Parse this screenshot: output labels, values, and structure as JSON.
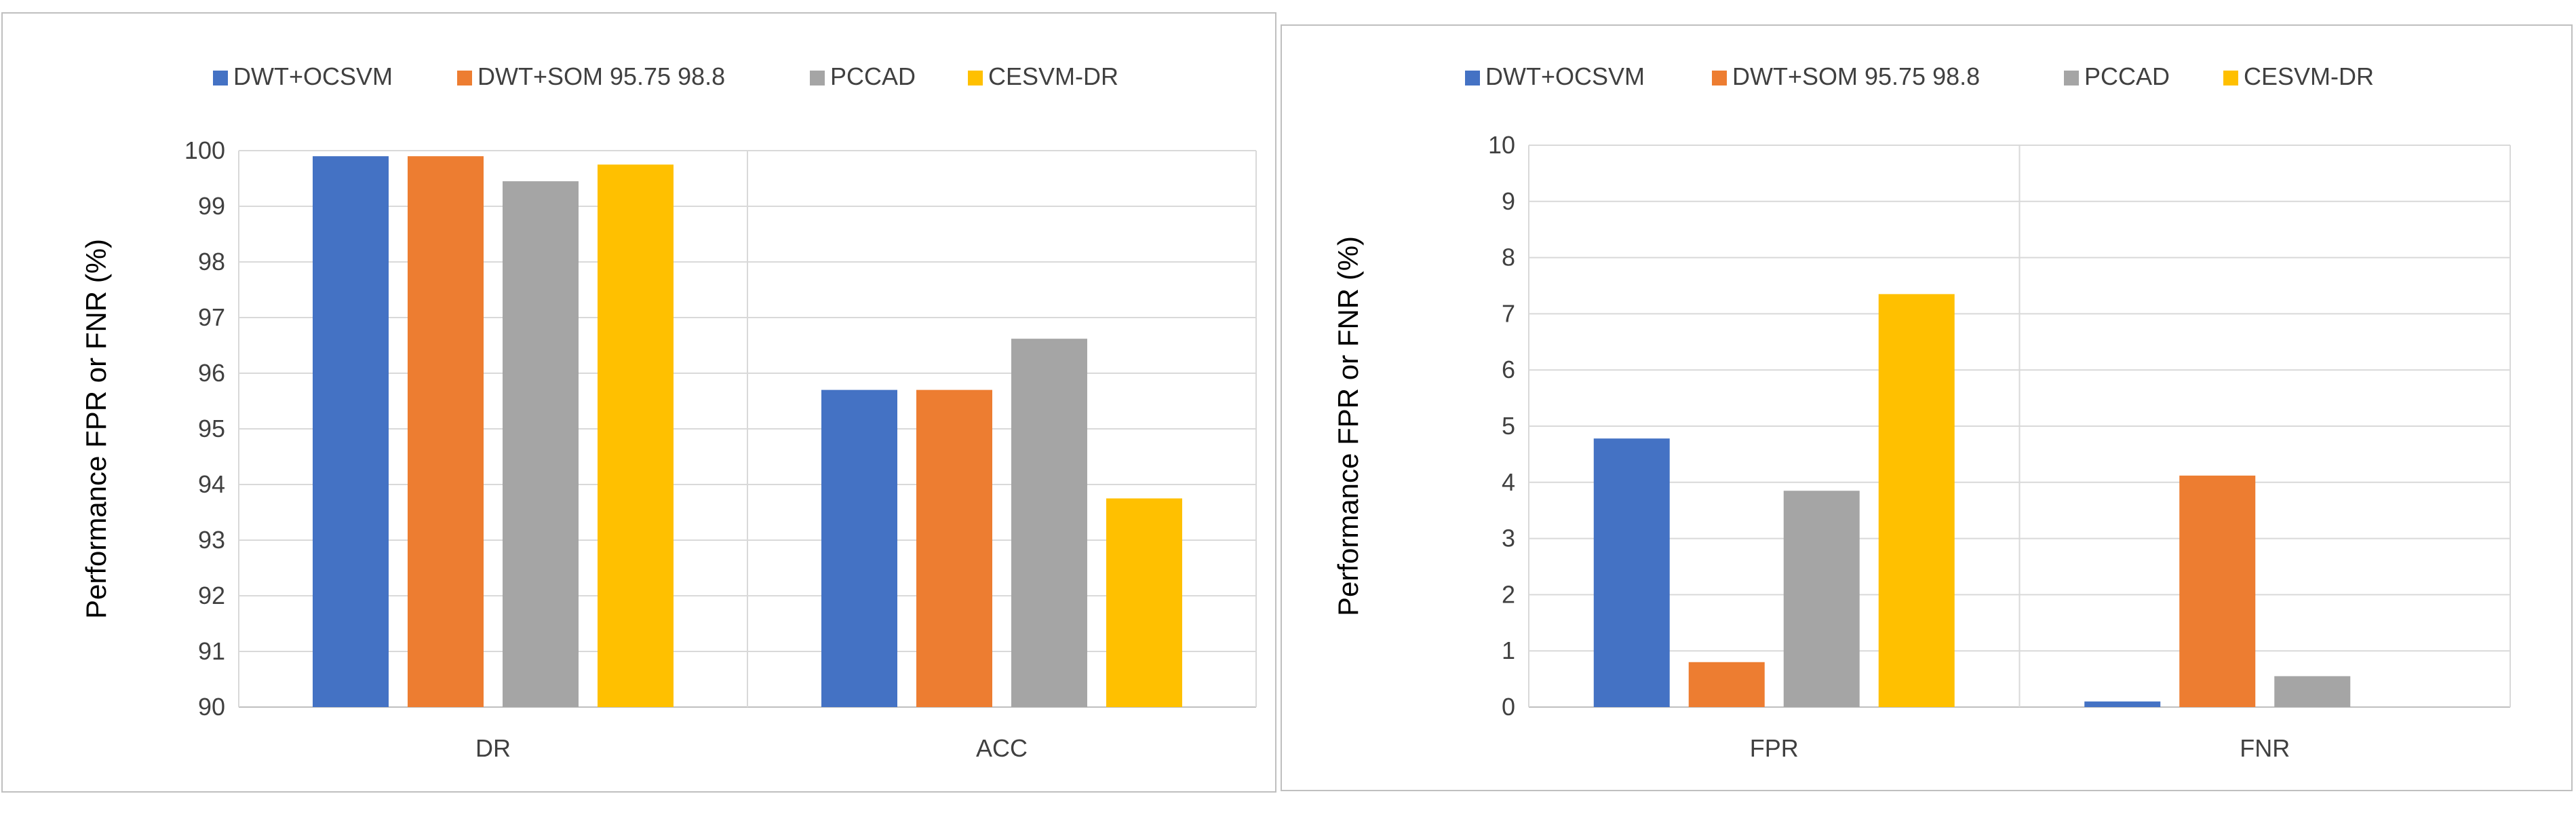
{
  "chart_data": [
    {
      "type": "bar",
      "title": "",
      "xlabel": "",
      "ylabel": "Performance FPR or FNR (%)",
      "ylim": [
        90,
        100
      ],
      "yticks": [
        90,
        91,
        92,
        93,
        94,
        95,
        96,
        97,
        98,
        99,
        100
      ],
      "categories": [
        "DR",
        "ACC"
      ],
      "legend_position": "top",
      "grid": true,
      "series": [
        {
          "name": "DWT+OCSVM",
          "color": "#4472C4",
          "values": [
            99.9,
            95.7
          ]
        },
        {
          "name": "DWT+SOM 95.75 98.8",
          "color": "#ED7D31",
          "values": [
            99.9,
            95.7
          ]
        },
        {
          "name": "PCCAD",
          "color": "#A5A5A5",
          "values": [
            99.45,
            96.62
          ]
        },
        {
          "name": "CESVM-DR",
          "color": "#FFC000",
          "values": [
            99.75,
            93.75
          ]
        }
      ]
    },
    {
      "type": "bar",
      "title": "",
      "xlabel": "",
      "ylabel": "Performance FPR or FNR (%)",
      "ylim": [
        0,
        10
      ],
      "yticks": [
        0,
        1,
        2,
        3,
        4,
        5,
        6,
        7,
        8,
        9,
        10
      ],
      "categories": [
        "FPR",
        "FNR"
      ],
      "legend_position": "top",
      "grid": true,
      "series": [
        {
          "name": "DWT+OCSVM",
          "color": "#4472C4",
          "values": [
            4.78,
            0.1
          ]
        },
        {
          "name": "DWT+SOM 95.75 98.8",
          "color": "#ED7D31",
          "values": [
            0.8,
            4.12
          ]
        },
        {
          "name": "PCCAD",
          "color": "#A5A5A5",
          "values": [
            3.85,
            0.55
          ]
        },
        {
          "name": "CESVM-DR",
          "color": "#FFC000",
          "values": [
            7.35,
            0.0
          ]
        }
      ]
    }
  ]
}
